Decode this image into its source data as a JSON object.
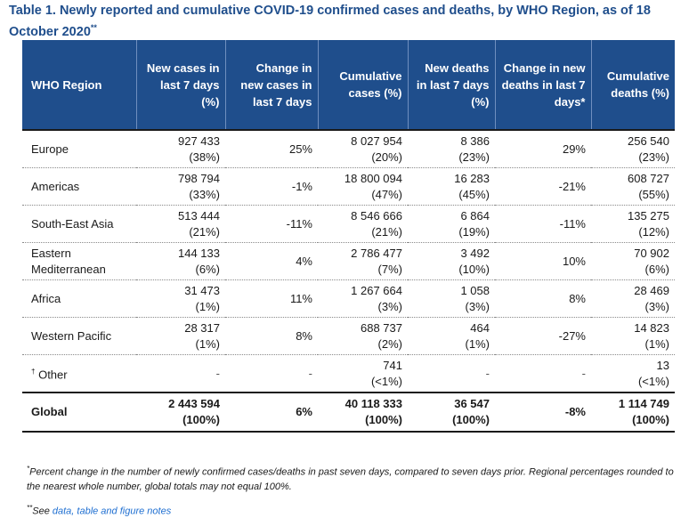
{
  "title": "Table 1. Newly reported and cumulative COVID-19 confirmed cases and deaths, by WHO Region, as of 18 October 2020",
  "title_sup": "**",
  "headers": {
    "region": "WHO Region",
    "new_cases": "New cases in last 7 days (%)",
    "change_cases": "Change in new cases in last 7 days",
    "cum_cases": "Cumulative cases (%)",
    "new_deaths": "New deaths in last 7 days (%)",
    "change_deaths": "Change in new deaths in last 7 days*",
    "cum_deaths": "Cumulative deaths (%)"
  },
  "rows": [
    {
      "region": "Europe",
      "new_cases": "927 433",
      "new_cases_pct": "(38%)",
      "change_cases": "25%",
      "cum_cases": "8 027 954",
      "cum_cases_pct": "(20%)",
      "new_deaths": "8 386",
      "new_deaths_pct": "(23%)",
      "change_deaths": "29%",
      "cum_deaths": "256 540",
      "cum_deaths_pct": "(23%)"
    },
    {
      "region": "Americas",
      "new_cases": "798 794",
      "new_cases_pct": "(33%)",
      "change_cases": "-1%",
      "cum_cases": "18 800 094",
      "cum_cases_pct": "(47%)",
      "new_deaths": "16 283",
      "new_deaths_pct": "(45%)",
      "change_deaths": "-21%",
      "cum_deaths": "608 727",
      "cum_deaths_pct": "(55%)"
    },
    {
      "region": "South-East Asia",
      "new_cases": "513 444",
      "new_cases_pct": "(21%)",
      "change_cases": "-11%",
      "cum_cases": "8 546 666",
      "cum_cases_pct": "(21%)",
      "new_deaths": "6 864",
      "new_deaths_pct": "(19%)",
      "change_deaths": "-11%",
      "cum_deaths": "135 275",
      "cum_deaths_pct": "(12%)"
    },
    {
      "region": "Eastern Mediterranean",
      "new_cases": "144 133",
      "new_cases_pct": "(6%)",
      "change_cases": "4%",
      "cum_cases": "2 786 477",
      "cum_cases_pct": "(7%)",
      "new_deaths": "3 492",
      "new_deaths_pct": "(10%)",
      "change_deaths": "10%",
      "cum_deaths": "70 902",
      "cum_deaths_pct": "(6%)"
    },
    {
      "region": "Africa",
      "new_cases": "31 473",
      "new_cases_pct": "(1%)",
      "change_cases": "11%",
      "cum_cases": "1 267 664",
      "cum_cases_pct": "(3%)",
      "new_deaths": "1 058",
      "new_deaths_pct": "(3%)",
      "change_deaths": "8%",
      "cum_deaths": "28 469",
      "cum_deaths_pct": "(3%)"
    },
    {
      "region": "Western Pacific",
      "new_cases": "28 317",
      "new_cases_pct": "(1%)",
      "change_cases": "8%",
      "cum_cases": "688 737",
      "cum_cases_pct": "(2%)",
      "new_deaths": "464",
      "new_deaths_pct": "(1%)",
      "change_deaths": "-27%",
      "cum_deaths": "14 823",
      "cum_deaths_pct": "(1%)"
    },
    {
      "region_sup": "†",
      "region": "Other",
      "new_cases": "-",
      "new_cases_pct": "",
      "change_cases": "-",
      "cum_cases": "741",
      "cum_cases_pct": "(<1%)",
      "new_deaths": "-",
      "new_deaths_pct": "",
      "change_deaths": "-",
      "cum_deaths": "13",
      "cum_deaths_pct": "(<1%)"
    }
  ],
  "global": {
    "region": "Global",
    "new_cases": "2 443 594",
    "new_cases_pct": "(100%)",
    "change_cases": "6%",
    "cum_cases": "40 118 333",
    "cum_cases_pct": "(100%)",
    "new_deaths": "36 547",
    "new_deaths_pct": "(100%)",
    "change_deaths": "-8%",
    "cum_deaths": "1 114 749",
    "cum_deaths_pct": "(100%)"
  },
  "footnote_sup": "*",
  "footnote": "Percent change in the number of newly confirmed cases/deaths in past seven days, compared to seven days prior. Regional percentages rounded to the nearest whole number, global totals may not equal 100%.",
  "see_sup": "**",
  "see_text": "See",
  "see_link": "data, table and figure notes",
  "colors": {
    "header_bg": "#1f4e8c",
    "title": "#1f4e8c",
    "link": "#1f6fd1"
  }
}
